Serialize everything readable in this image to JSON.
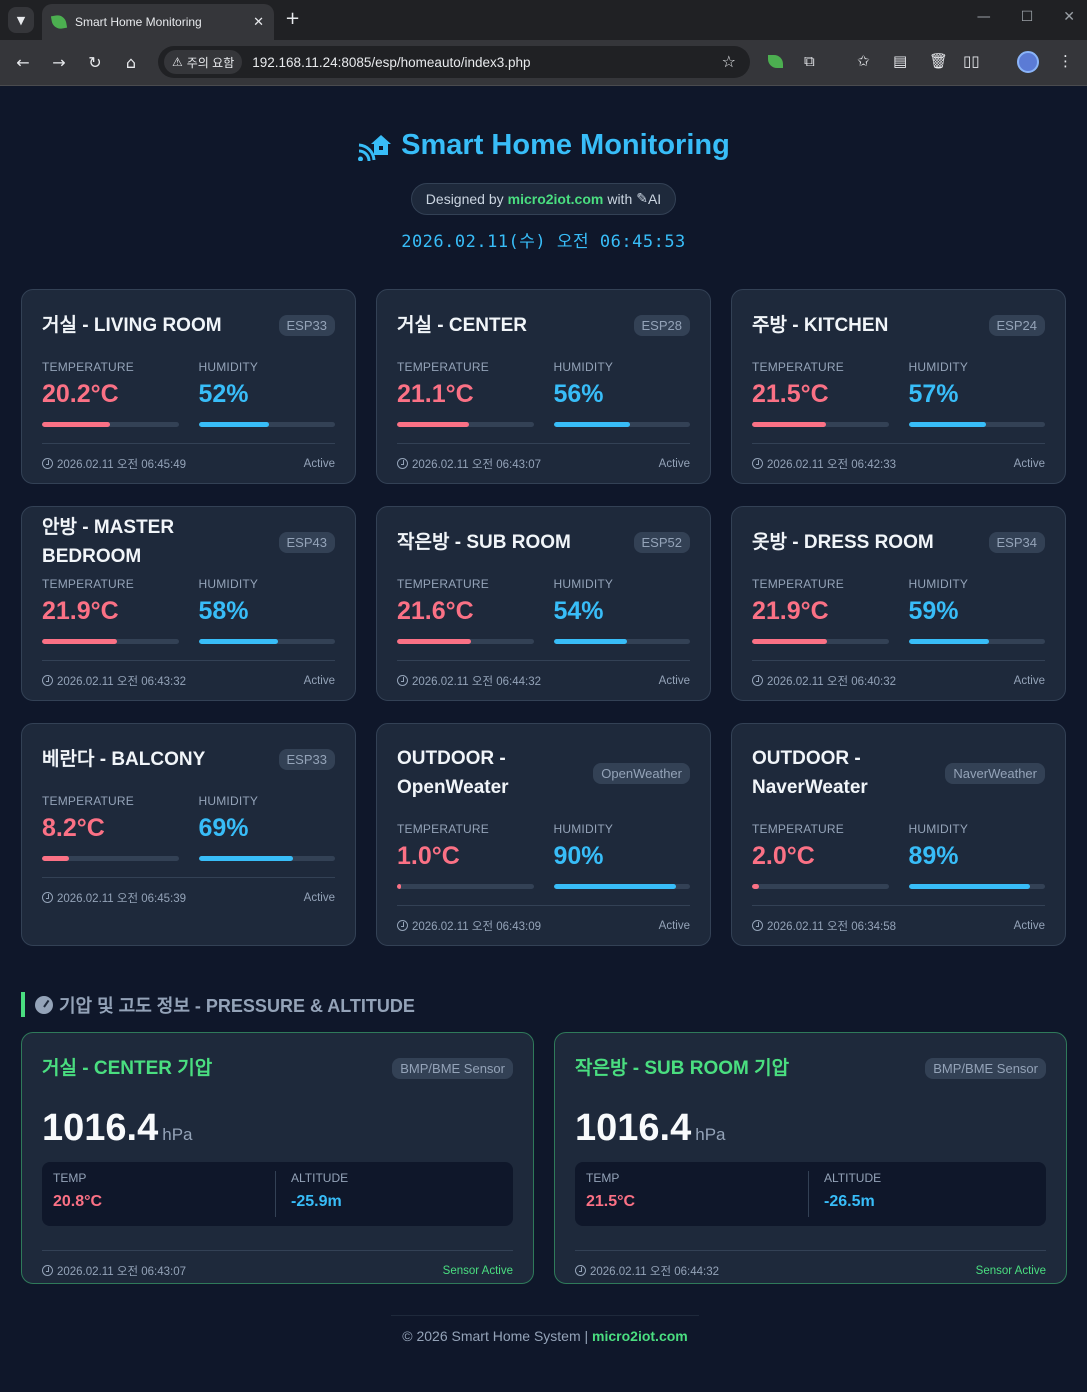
{
  "browser": {
    "tab_title": "Smart Home Monitoring",
    "security_label": "주의 요함",
    "url_host": "192.168.11.24",
    "url_rest": ":8085/esp/homeauto/index3.php"
  },
  "header": {
    "title": "Smart Home Monitoring",
    "designed_prefix": "Designed by",
    "designed_brand": "micro2iot.com",
    "designed_with": "with",
    "designed_ai": "AI",
    "datetime": "2026.02.11(수) 오전 06:45:53"
  },
  "labels": {
    "temperature": "TEMPERATURE",
    "humidity": "HUMIDITY",
    "active": "Active"
  },
  "rooms": [
    {
      "title": "거실 - LIVING ROOM",
      "badge": "ESP33",
      "temp": "20.2°C",
      "hum": "52%",
      "temp_level": 0.5,
      "hum_level": 0.52,
      "time": "2026.02.11 오전 06:45:49"
    },
    {
      "title": "거실 - CENTER",
      "badge": "ESP28",
      "temp": "21.1°C",
      "hum": "56%",
      "temp_level": 0.53,
      "hum_level": 0.56,
      "time": "2026.02.11 오전 06:43:07"
    },
    {
      "title": "주방 - KITCHEN",
      "badge": "ESP24",
      "temp": "21.5°C",
      "hum": "57%",
      "temp_level": 0.54,
      "hum_level": 0.57,
      "time": "2026.02.11 오전 06:42:33"
    },
    {
      "title": "안방 - MASTER BEDROOM",
      "badge": "ESP43",
      "temp": "21.9°C",
      "hum": "58%",
      "temp_level": 0.55,
      "hum_level": 0.58,
      "time": "2026.02.11 오전 06:43:32"
    },
    {
      "title": "작은방 - SUB ROOM",
      "badge": "ESP52",
      "temp": "21.6°C",
      "hum": "54%",
      "temp_level": 0.54,
      "hum_level": 0.54,
      "time": "2026.02.11 오전 06:44:32"
    },
    {
      "title": "옷방 - DRESS ROOM",
      "badge": "ESP34",
      "temp": "21.9°C",
      "hum": "59%",
      "temp_level": 0.55,
      "hum_level": 0.59,
      "time": "2026.02.11 오전 06:40:32"
    },
    {
      "title": "베란다 - BALCONY",
      "badge": "ESP33",
      "temp": "8.2°C",
      "hum": "69%",
      "temp_level": 0.2,
      "hum_level": 0.69,
      "time": "2026.02.11 오전 06:45:39"
    },
    {
      "title": "OUTDOOR - OpenWeater",
      "badge": "OpenWeather",
      "temp": "1.0°C",
      "hum": "90%",
      "temp_level": 0.03,
      "hum_level": 0.9,
      "time": "2026.02.11 오전 06:43:09"
    },
    {
      "title": "OUTDOOR - NaverWeater",
      "badge": "NaverWeather",
      "temp": "2.0°C",
      "hum": "89%",
      "temp_level": 0.05,
      "hum_level": 0.89,
      "time": "2026.02.11 오전 06:34:58"
    }
  ],
  "pressure_section": {
    "title": "기압 및 고도 정보 - PRESSURE & ALTITUDE",
    "temp_label": "TEMP",
    "altitude_label": "ALTITUDE",
    "active_label": "Sensor Active",
    "unit": "hPa",
    "cards": [
      {
        "title": "거실 - CENTER 기압",
        "badge": "BMP/BME Sensor",
        "pressure": "1016.4",
        "temp": "20.8°C",
        "altitude": "-25.9m",
        "time": "2026.02.11 오전 06:43:07"
      },
      {
        "title": "작은방 - SUB ROOM 기압",
        "badge": "BMP/BME Sensor",
        "pressure": "1016.4",
        "temp": "21.5°C",
        "altitude": "-26.5m",
        "time": "2026.02.11 오전 06:44:32"
      }
    ]
  },
  "footer": {
    "text": "© 2026 Smart Home System |",
    "brand": "micro2iot.com"
  },
  "colors": {
    "accent": "#38bdf8",
    "temperature": "#fb7185",
    "brand_green": "#4ade80",
    "card_bg": "#1e293b",
    "page_bg": "#0f172a"
  }
}
